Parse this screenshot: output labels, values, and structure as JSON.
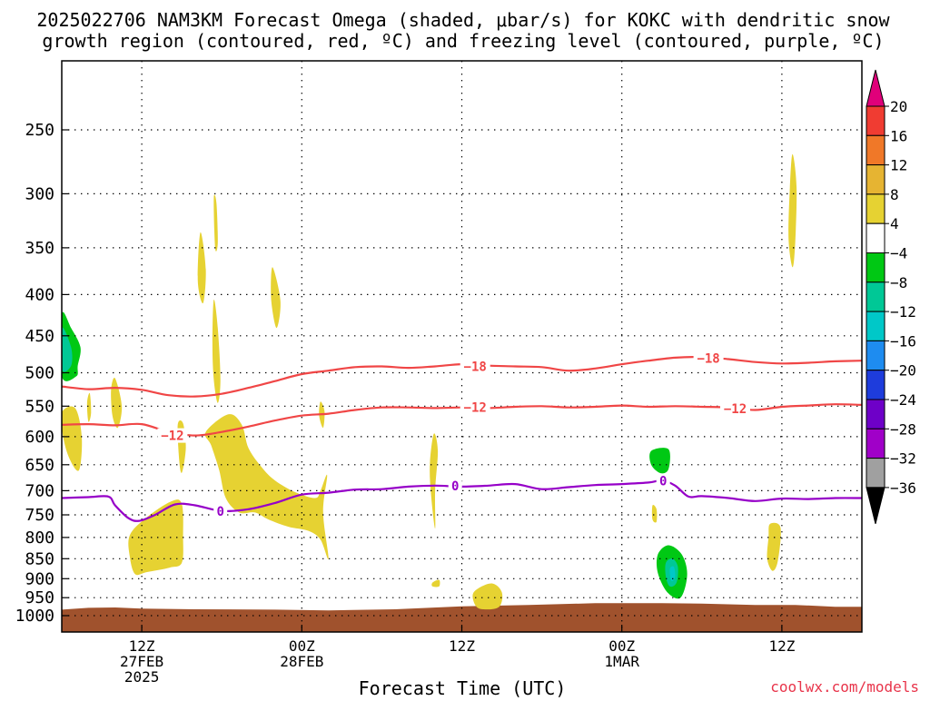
{
  "chart_data": {
    "type": "contour",
    "title_line1": "2025022706 NAM3KM Forecast Omega (shaded, μbar/s) for KOKC with dendritic snow",
    "title_line2": "growth region (contoured, red, ºC) and freezing level (contoured, purple, ºC)",
    "xlabel": "Forecast Time (UTC)",
    "credit": "coolwx.com/models",
    "x_range": [
      "2025-02-27T06:00Z",
      "2025-03-01T18:00Z"
    ],
    "x_ticks": [
      {
        "t": 6,
        "lines": [
          "12Z",
          "27FEB",
          "2025"
        ]
      },
      {
        "t": 18,
        "lines": [
          "00Z",
          "28FEB"
        ]
      },
      {
        "t": 30,
        "lines": [
          "12Z"
        ]
      },
      {
        "t": 42,
        "lines": [
          "00Z",
          "1MAR"
        ]
      },
      {
        "t": 54,
        "lines": [
          "12Z"
        ]
      }
    ],
    "y_axis": {
      "scale": "log",
      "inverted": true,
      "range_hPa": [
        200,
        1030
      ],
      "ticks": [
        250,
        300,
        350,
        400,
        450,
        500,
        550,
        600,
        650,
        700,
        750,
        800,
        850,
        900,
        950,
        1000
      ]
    },
    "grid": true,
    "colorbar": {
      "position": "right",
      "labels": [
        "20",
        "16",
        "12",
        "8",
        "4",
        "−4",
        "−8",
        "−12",
        "−16",
        "−20",
        "−24",
        "−28",
        "−32",
        "−36"
      ],
      "segments": [
        {
          "range": ">20",
          "color": "#e0007a"
        },
        {
          "range": "16–20",
          "color": "#f03c32"
        },
        {
          "range": "12–16",
          "color": "#f07828"
        },
        {
          "range": "8–12",
          "color": "#e6b432"
        },
        {
          "range": "4–8",
          "color": "#e6d232"
        },
        {
          "range": "−4–4",
          "color": "#ffffff"
        },
        {
          "range": "−8–−4",
          "color": "#00c814"
        },
        {
          "range": "−12–−8",
          "color": "#00c896"
        },
        {
          "range": "−16–−12",
          "color": "#00c8c8"
        },
        {
          "range": "−20–−16",
          "color": "#1e8cf0"
        },
        {
          "range": "−24–−20",
          "color": "#1e3cdc"
        },
        {
          "range": "−28–−24",
          "color": "#6e00c8"
        },
        {
          "range": "−32–−28",
          "color": "#a000c8"
        },
        {
          "range": "−36–−32",
          "color": "#a0a0a0"
        },
        {
          "range": "<−36",
          "color": "#000000"
        }
      ]
    },
    "contours": [
      {
        "name": "−18",
        "color": "#f04646",
        "points": [
          [
            0,
            520
          ],
          [
            2,
            524
          ],
          [
            4,
            522
          ],
          [
            6,
            525
          ],
          [
            8,
            533
          ],
          [
            10,
            535
          ],
          [
            12,
            531
          ],
          [
            14,
            522
          ],
          [
            16,
            512
          ],
          [
            18,
            502
          ],
          [
            20,
            497
          ],
          [
            22,
            492
          ],
          [
            24,
            491
          ],
          [
            26,
            493
          ],
          [
            28,
            491
          ],
          [
            30,
            488
          ],
          [
            32,
            490
          ],
          [
            34,
            491
          ],
          [
            36,
            492
          ],
          [
            38,
            497
          ],
          [
            40,
            494
          ],
          [
            42,
            488
          ],
          [
            44,
            483
          ],
          [
            46,
            479
          ],
          [
            48,
            478
          ],
          [
            50,
            481
          ],
          [
            52,
            485
          ],
          [
            54,
            487
          ],
          [
            56,
            486
          ],
          [
            58,
            484
          ],
          [
            60,
            483
          ]
        ],
        "labels": [
          {
            "t": 31,
            "p": 491
          },
          {
            "t": 48.5,
            "p": 480
          }
        ]
      },
      {
        "name": "−12",
        "color": "#f04646",
        "points": [
          [
            0,
            580
          ],
          [
            2,
            579
          ],
          [
            4,
            581
          ],
          [
            6,
            579
          ],
          [
            8,
            592
          ],
          [
            10,
            598
          ],
          [
            12,
            592
          ],
          [
            14,
            583
          ],
          [
            16,
            573
          ],
          [
            18,
            565
          ],
          [
            20,
            562
          ],
          [
            22,
            556
          ],
          [
            24,
            552
          ],
          [
            26,
            552
          ],
          [
            28,
            553
          ],
          [
            30,
            552
          ],
          [
            32,
            553
          ],
          [
            34,
            551
          ],
          [
            36,
            550
          ],
          [
            38,
            552
          ],
          [
            40,
            551
          ],
          [
            42,
            549
          ],
          [
            44,
            551
          ],
          [
            46,
            550
          ],
          [
            48,
            551
          ],
          [
            50,
            552
          ],
          [
            52,
            556
          ],
          [
            54,
            551
          ],
          [
            56,
            549
          ],
          [
            58,
            547
          ],
          [
            60,
            548
          ]
        ],
        "labels": [
          {
            "t": 8.3,
            "p": 598
          },
          {
            "t": 31,
            "p": 552
          },
          {
            "t": 50.5,
            "p": 554
          }
        ]
      },
      {
        "name": "0",
        "color": "#9600c8",
        "points": [
          [
            0,
            715
          ],
          [
            2,
            713
          ],
          [
            3.5,
            712
          ],
          [
            4,
            730
          ],
          [
            5,
            757
          ],
          [
            5.8,
            763
          ],
          [
            7,
            750
          ],
          [
            8.5,
            728
          ],
          [
            10,
            730
          ],
          [
            12,
            742
          ],
          [
            14,
            738
          ],
          [
            16,
            725
          ],
          [
            18,
            708
          ],
          [
            20,
            704
          ],
          [
            22,
            698
          ],
          [
            24,
            697
          ],
          [
            26,
            692
          ],
          [
            28,
            690
          ],
          [
            30,
            692
          ],
          [
            32,
            690
          ],
          [
            34,
            687
          ],
          [
            36,
            697
          ],
          [
            38,
            693
          ],
          [
            40,
            689
          ],
          [
            42,
            687
          ],
          [
            44,
            684
          ],
          [
            45,
            680
          ],
          [
            46,
            690
          ],
          [
            47,
            712
          ],
          [
            48,
            711
          ],
          [
            50,
            715
          ],
          [
            52,
            721
          ],
          [
            54,
            716
          ],
          [
            56,
            717
          ],
          [
            58,
            715
          ],
          [
            60,
            715
          ]
        ],
        "labels": [
          {
            "t": 11.9,
            "p": 742
          },
          {
            "t": 29.5,
            "p": 690
          },
          {
            "t": 45.1,
            "p": 681
          }
        ]
      }
    ],
    "shaded_regions": [
      {
        "color": "#e6d232",
        "points": [
          [
            0,
            560
          ],
          [
            1,
            553
          ],
          [
            1.5,
            600
          ],
          [
            1.3,
            660
          ],
          [
            0.6,
            640
          ],
          [
            0.1,
            600
          ]
        ]
      },
      {
        "color": "#e6d232",
        "points": [
          [
            1.9,
            545
          ],
          [
            2.1,
            530
          ],
          [
            2.2,
            560
          ],
          [
            2.0,
            575
          ]
        ]
      },
      {
        "color": "#e6d232",
        "points": [
          [
            3.7,
            525
          ],
          [
            4.0,
            508
          ],
          [
            4.5,
            550
          ],
          [
            4.2,
            585
          ],
          [
            3.8,
            565
          ]
        ]
      },
      {
        "color": "#e6d232",
        "points": [
          [
            5.1,
            795
          ],
          [
            6.3,
            757
          ],
          [
            8.2,
            722
          ],
          [
            9.0,
            727
          ],
          [
            9.1,
            800
          ],
          [
            9.0,
            860
          ],
          [
            8.1,
            872
          ],
          [
            6.4,
            883
          ],
          [
            5.5,
            888
          ],
          [
            5.1,
            845
          ]
        ]
      },
      {
        "color": "#e6d232",
        "points": [
          [
            8.7,
            580
          ],
          [
            9.1,
            578
          ],
          [
            9.3,
            620
          ],
          [
            9.0,
            665
          ],
          [
            8.8,
            640
          ]
        ]
      },
      {
        "color": "#e6d232",
        "points": [
          [
            10.4,
            335
          ],
          [
            10.8,
            372
          ],
          [
            10.6,
            410
          ],
          [
            10.2,
            385
          ]
        ]
      },
      {
        "color": "#e6d232",
        "points": [
          [
            11.4,
            304
          ],
          [
            11.6,
            308
          ],
          [
            11.7,
            345
          ],
          [
            11.5,
            350
          ]
        ]
      },
      {
        "color": "#e6d232",
        "points": [
          [
            11.4,
            406
          ],
          [
            11.7,
            440
          ],
          [
            11.9,
            510
          ],
          [
            11.7,
            545
          ],
          [
            11.4,
            510
          ],
          [
            11.3,
            460
          ]
        ]
      },
      {
        "color": "#e6d232",
        "points": [
          [
            10.8,
            592
          ],
          [
            12.5,
            563
          ],
          [
            13.5,
            580
          ],
          [
            14.0,
            620
          ],
          [
            15.0,
            655
          ],
          [
            16.0,
            680
          ],
          [
            17.5,
            703
          ],
          [
            19.0,
            715
          ],
          [
            19.4,
            700
          ],
          [
            19.9,
            670
          ],
          [
            19.6,
            745
          ],
          [
            20.0,
            850
          ],
          [
            19.4,
            805
          ],
          [
            18.5,
            785
          ],
          [
            17.0,
            776
          ],
          [
            15.5,
            760
          ],
          [
            14.5,
            745
          ],
          [
            13.3,
            745
          ],
          [
            12.3,
            715
          ],
          [
            11.8,
            660
          ],
          [
            11.2,
            615
          ]
        ]
      },
      {
        "color": "#e6d232",
        "points": [
          [
            15.8,
            370
          ],
          [
            16.4,
            408
          ],
          [
            16.1,
            440
          ],
          [
            15.7,
            405
          ]
        ]
      },
      {
        "color": "#e6d232",
        "points": [
          [
            19.4,
            543
          ],
          [
            19.7,
            558
          ],
          [
            19.6,
            585
          ],
          [
            19.3,
            565
          ]
        ]
      },
      {
        "color": "#e6d232",
        "points": [
          [
            27.9,
            595
          ],
          [
            28.2,
            625
          ],
          [
            28.0,
            700
          ],
          [
            28.0,
            780
          ],
          [
            27.7,
            710
          ],
          [
            27.6,
            650
          ]
        ]
      },
      {
        "color": "#e6d232",
        "points": [
          [
            27.8,
            910
          ],
          [
            28.3,
            903
          ],
          [
            28.3,
            920
          ],
          [
            27.8,
            920
          ]
        ]
      },
      {
        "color": "#e6d232",
        "points": [
          [
            30.9,
            935
          ],
          [
            32.2,
            912
          ],
          [
            33.0,
            935
          ],
          [
            32.8,
            975
          ],
          [
            31.6,
            982
          ],
          [
            31.0,
            970
          ]
        ]
      },
      {
        "color": "#00c814",
        "points": [
          [
            44.2,
            625
          ],
          [
            45.5,
            622
          ],
          [
            45.5,
            658
          ],
          [
            44.9,
            666
          ],
          [
            44.2,
            650
          ]
        ]
      },
      {
        "color": "#e6d232",
        "points": [
          [
            44.3,
            730
          ],
          [
            44.6,
            738
          ],
          [
            44.6,
            765
          ],
          [
            44.3,
            760
          ]
        ]
      },
      {
        "color": "#00c814",
        "points": [
          [
            44.7,
            840
          ],
          [
            45.5,
            818
          ],
          [
            46.5,
            840
          ],
          [
            46.9,
            890
          ],
          [
            46.4,
            950
          ],
          [
            45.4,
            935
          ],
          [
            44.7,
            885
          ]
        ]
      },
      {
        "color": "#00c896",
        "points": [
          [
            45.3,
            860
          ],
          [
            45.8,
            850
          ],
          [
            46.2,
            870
          ],
          [
            46.1,
            910
          ],
          [
            45.6,
            920
          ],
          [
            45.3,
            895
          ]
        ]
      },
      {
        "color": "#00c8c8",
        "points": [
          [
            45.6,
            875
          ],
          [
            45.9,
            870
          ],
          [
            46.0,
            895
          ],
          [
            45.7,
            905
          ]
        ]
      },
      {
        "color": "#e6d232",
        "points": [
          [
            53.1,
            770
          ],
          [
            53.9,
            778
          ],
          [
            53.7,
            855
          ],
          [
            53.3,
            880
          ],
          [
            52.9,
            850
          ],
          [
            53.0,
            800
          ]
        ]
      },
      {
        "color": "#e6d232",
        "points": [
          [
            54.8,
            268
          ],
          [
            55.1,
            295
          ],
          [
            55.0,
            345
          ],
          [
            54.8,
            370
          ],
          [
            54.5,
            340
          ],
          [
            54.6,
            295
          ]
        ]
      },
      {
        "color": "#00c814",
        "points": [
          [
            0,
            423
          ],
          [
            0.7,
            440
          ],
          [
            1.4,
            465
          ],
          [
            1.2,
            490
          ],
          [
            1.1,
            505
          ],
          [
            0,
            505
          ]
        ]
      },
      {
        "color": "#00c896",
        "points": [
          [
            0,
            440
          ],
          [
            0.7,
            465
          ],
          [
            0.7,
            490
          ],
          [
            0,
            495
          ]
        ]
      }
    ],
    "ground_color": "#a0522d",
    "ground": [
      [
        0,
        983
      ],
      [
        2,
        978
      ],
      [
        4,
        977
      ],
      [
        6,
        980
      ],
      [
        10,
        982
      ],
      [
        16,
        983
      ],
      [
        20,
        985
      ],
      [
        25,
        982
      ],
      [
        30,
        974
      ],
      [
        35,
        970
      ],
      [
        40,
        965
      ],
      [
        45,
        965
      ],
      [
        48,
        966
      ],
      [
        52,
        970
      ],
      [
        55,
        970
      ],
      [
        58,
        975
      ],
      [
        60,
        975
      ]
    ]
  }
}
